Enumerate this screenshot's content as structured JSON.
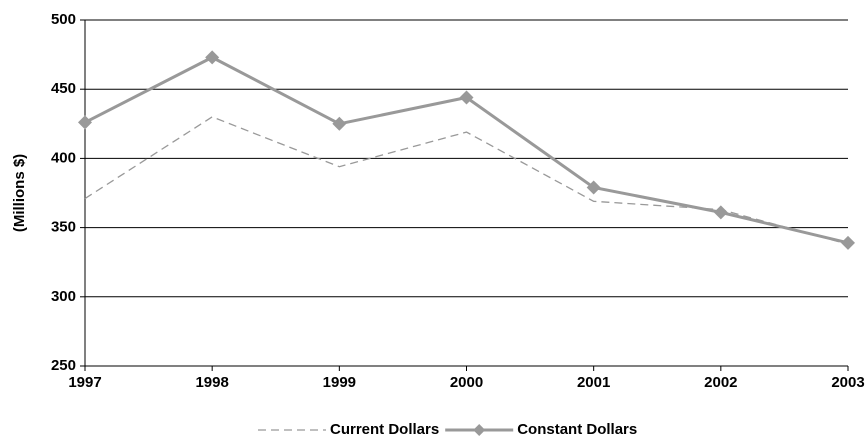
{
  "chart_data": {
    "type": "line",
    "y_label": "(Millions $)",
    "x": [
      1997,
      1998,
      1999,
      2000,
      2001,
      2002,
      2003
    ],
    "xlim": [
      1997,
      2003
    ],
    "xticks": [
      1997,
      1998,
      1999,
      2000,
      2001,
      2002,
      2003
    ],
    "ylim": [
      250,
      500
    ],
    "yticks": [
      250,
      300,
      350,
      400,
      450,
      500
    ],
    "grid": true,
    "legend": "bottom",
    "series": [
      {
        "name": "Current Dollars",
        "color": "#999999",
        "dashed": true,
        "marker": "none",
        "values": [
          371,
          430,
          394,
          419,
          369,
          363,
          338
        ]
      },
      {
        "name": "Constant Dollars",
        "color": "#999999",
        "dashed": false,
        "marker": "diamond",
        "values": [
          426,
          473,
          425,
          444,
          379,
          361,
          339
        ]
      }
    ]
  }
}
